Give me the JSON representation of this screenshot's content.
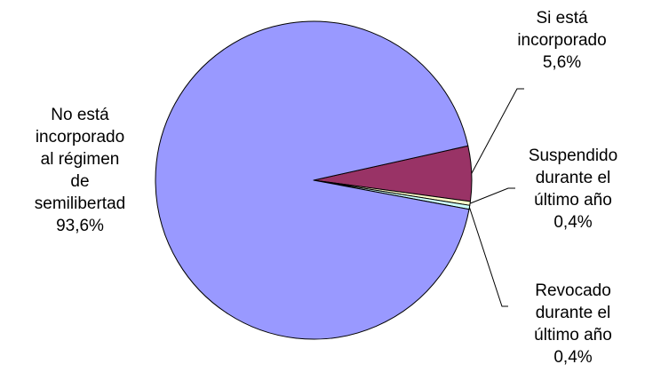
{
  "chart_data": {
    "type": "pie",
    "title": "",
    "slices": [
      {
        "label": "No está\nincorporado\nal régimen\nde\nsemilibertad",
        "value": 93.6,
        "value_label": "93,6%",
        "color": "#9999FF"
      },
      {
        "label": "Si está\nincorporado",
        "value": 5.6,
        "value_label": "5,6%",
        "color": "#993366"
      },
      {
        "label": "Suspendido\ndurante el\núltimo año",
        "value": 0.4,
        "value_label": "0,4%",
        "color": "#FFFFCC"
      },
      {
        "label": "Revocado\ndurante el\núltimo año",
        "value": 0.4,
        "value_label": "0,4%",
        "color": "#CCFFFF"
      }
    ],
    "legend": "none",
    "start_slice": "Si está incorporado"
  }
}
